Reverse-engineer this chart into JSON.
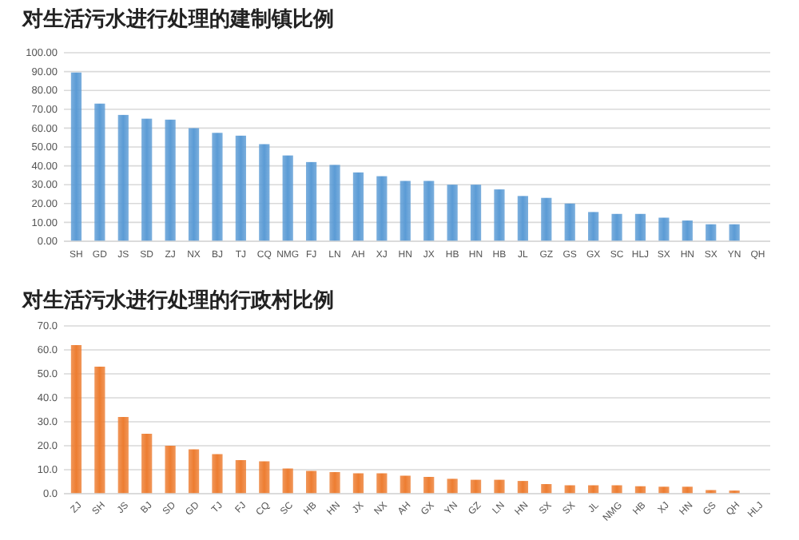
{
  "chart_data": [
    {
      "type": "bar",
      "title": "对生活污水进行处理的建制镇比例",
      "categories": [
        "SH",
        "GD",
        "JS",
        "SD",
        "ZJ",
        "NX",
        "BJ",
        "TJ",
        "CQ",
        "NMG",
        "FJ",
        "LN",
        "AH",
        "XJ",
        "HN",
        "JX",
        "HB",
        "HN",
        "HB",
        "JL",
        "GZ",
        "GS",
        "GX",
        "SC",
        "HLJ",
        "SX",
        "HN",
        "SX",
        "YN",
        "QH"
      ],
      "values": [
        89.5,
        73,
        67,
        65,
        64.5,
        60,
        57.5,
        56,
        51.5,
        45.5,
        42,
        40.5,
        36.5,
        34.5,
        32,
        32,
        30,
        30,
        27.5,
        24,
        23,
        20,
        15.5,
        14.5,
        14.5,
        12.5,
        11,
        9,
        9,
        0
      ],
      "color": "#5b9bd5",
      "ylim": [
        0,
        100
      ],
      "yticks": [
        {
          "value": 0,
          "label": "0.00"
        },
        {
          "value": 10,
          "label": "10.00"
        },
        {
          "value": 20,
          "label": "20.00"
        },
        {
          "value": 30,
          "label": "30.00"
        },
        {
          "value": 40,
          "label": "40.00"
        },
        {
          "value": 50,
          "label": "50.00"
        },
        {
          "value": 60,
          "label": "60.00"
        },
        {
          "value": 70,
          "label": "70.00"
        },
        {
          "value": 80,
          "label": "80.00"
        },
        {
          "value": 90,
          "label": "90.00"
        },
        {
          "value": 100,
          "label": "100.00"
        }
      ],
      "grid": "y"
    },
    {
      "type": "bar",
      "title": "对生活污水进行处理的行政村比例",
      "categories": [
        "ZJ",
        "SH",
        "JS",
        "BJ",
        "SD",
        "GD",
        "TJ",
        "FJ",
        "CQ",
        "SC",
        "HB",
        "HN",
        "JX",
        "NX",
        "AH",
        "GX",
        "YN",
        "GZ",
        "LN",
        "HN",
        "SX",
        "SX",
        "JL",
        "NMG",
        "HB",
        "XJ",
        "HN",
        "GS",
        "QH",
        "HLJ"
      ],
      "values": [
        62,
        53,
        32,
        25,
        20,
        18.5,
        16.5,
        14,
        13.5,
        10.5,
        9.5,
        9,
        8.5,
        8.5,
        7.5,
        7,
        6.2,
        5.8,
        5.8,
        5.3,
        4,
        3.5,
        3.5,
        3.5,
        3.1,
        2.9,
        2.9,
        1.5,
        1.3,
        0
      ],
      "color": "#ed7d31",
      "ylim": [
        0,
        70
      ],
      "yticks": [
        {
          "value": 0,
          "label": "0.0"
        },
        {
          "value": 10,
          "label": "10.0"
        },
        {
          "value": 20,
          "label": "20.0"
        },
        {
          "value": 30,
          "label": "30.0"
        },
        {
          "value": 40,
          "label": "40.0"
        },
        {
          "value": 50,
          "label": "50.0"
        },
        {
          "value": 60,
          "label": "60.0"
        },
        {
          "value": 70,
          "label": "70.0"
        }
      ],
      "grid": "y"
    }
  ]
}
